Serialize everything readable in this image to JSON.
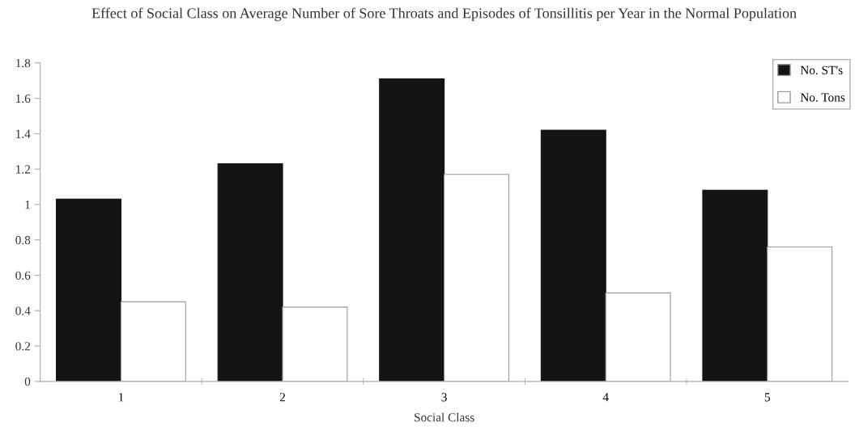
{
  "chart_data": {
    "type": "bar",
    "title": "Effect of Social Class on Average Number of Sore Throats and Episodes of Tonsillitis per Year in the Normal Population",
    "xlabel": "Social Class",
    "categories": [
      "1",
      "2",
      "3",
      "4",
      "5"
    ],
    "series": [
      {
        "name": "No. ST's",
        "color": "#141414",
        "values": [
          1.03,
          1.23,
          1.71,
          1.42,
          1.08
        ]
      },
      {
        "name": "No. Tons",
        "color": "#ffffff",
        "values": [
          0.45,
          0.42,
          1.17,
          0.5,
          0.76
        ]
      }
    ],
    "ylim": [
      0,
      1.8
    ],
    "yticks": [
      0,
      {
        "value": 0.2,
        "label": "0.2"
      },
      {
        "value": 0.4,
        "label": "0.4"
      },
      {
        "value": 0.6,
        "label": "0.6"
      },
      {
        "value": 0.8,
        "label": "0.8"
      },
      1,
      {
        "value": 1.2,
        "label": "1.2"
      },
      {
        "value": 1.4,
        "label": "1.4"
      },
      {
        "value": 1.6,
        "label": "1.6"
      },
      {
        "value": 1.8,
        "label": "1.8"
      }
    ],
    "grid": false,
    "legend": "top right"
  }
}
